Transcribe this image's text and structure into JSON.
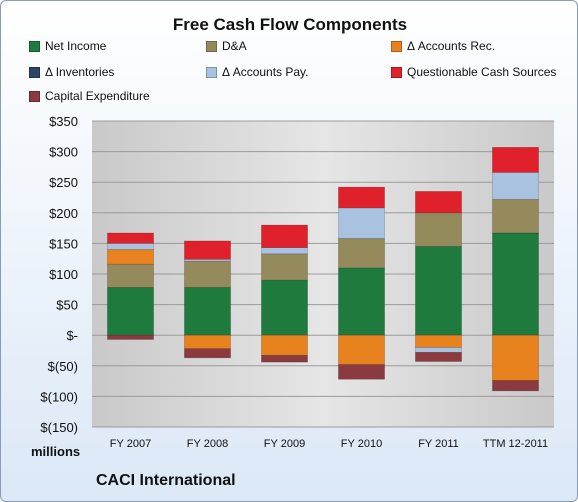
{
  "chart_data": {
    "type": "bar",
    "stacked": true,
    "title": "Free Cash Flow Components",
    "categories": [
      "FY 2007",
      "FY 2008",
      "FY 2009",
      "FY 2010",
      "FY 2011",
      "TTM 12-2011"
    ],
    "y_tick_labels": [
      "$(150)",
      "$(100)",
      "$(50)",
      "$-",
      "$50",
      "$100",
      "$150",
      "$200",
      "$250",
      "$300",
      "$350"
    ],
    "y_ticks": [
      -150,
      -100,
      -50,
      0,
      50,
      100,
      150,
      200,
      250,
      300,
      350
    ],
    "ylim": [
      -150,
      350
    ],
    "grid": true,
    "legend_position": "top",
    "units_label": "millions",
    "series": [
      {
        "name": "Net Income",
        "color": "#1f7a3d",
        "values": [
          78,
          78,
          90,
          110,
          145,
          167
        ]
      },
      {
        "name": "D&A",
        "color": "#958a5c",
        "values": [
          38,
          43,
          43,
          48,
          55,
          55
        ]
      },
      {
        "name": "Δ Accounts Rec.",
        "color": "#e8821f",
        "values": [
          24,
          -22,
          -33,
          -48,
          -20,
          -74
        ]
      },
      {
        "name": "Δ Inventories",
        "color": "#2d4466",
        "values": [
          0,
          0,
          0,
          0,
          0,
          0
        ]
      },
      {
        "name": "Δ Accounts Pay.",
        "color": "#a8c2e0",
        "values": [
          10,
          3,
          10,
          50,
          -8,
          44
        ]
      },
      {
        "name": "Questionable Cash Sources",
        "color": "#e0202a",
        "values": [
          17,
          30,
          37,
          34,
          35,
          41
        ]
      },
      {
        "name": "Capital Expenditure",
        "color": "#8b3a3f",
        "values": [
          -7,
          -15,
          -11,
          -24,
          -15,
          -17
        ]
      }
    ]
  },
  "footer": "CACI International"
}
